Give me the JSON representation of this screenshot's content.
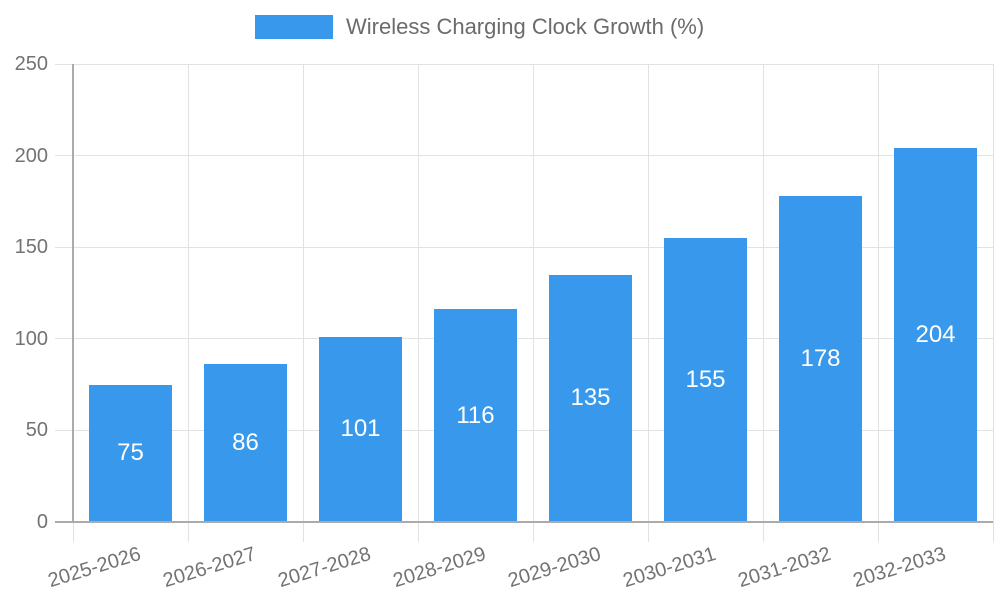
{
  "legend": {
    "label": "Wireless Charging Clock Growth (%)"
  },
  "chart_data": {
    "type": "bar",
    "title": "Wireless Charging Clock Growth (%)",
    "categories": [
      "2025-2026",
      "2026-2027",
      "2027-2028",
      "2028-2029",
      "2029-2030",
      "2030-2031",
      "2031-2032",
      "2032-2033"
    ],
    "values": [
      75,
      86,
      101,
      116,
      135,
      155,
      178,
      204
    ],
    "xlabel": "",
    "ylabel": "",
    "ylim": [
      0,
      250
    ],
    "yticks": [
      0,
      50,
      100,
      150,
      200,
      250
    ],
    "grid": true,
    "legend_position": "top",
    "value_labels": "inside-center"
  },
  "colors": {
    "bar": "#3899ec",
    "grid": "#e2e2e2",
    "axis": "#ababab",
    "tick_text": "#737373",
    "legend_text": "#6b6b6b",
    "value_text": "#ffffff",
    "background": "#ffffff"
  }
}
